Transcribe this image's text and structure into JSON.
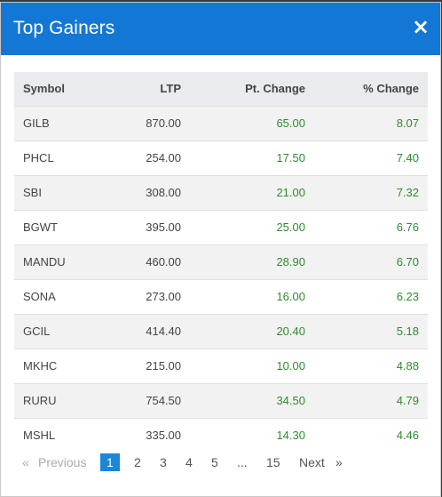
{
  "modal": {
    "title": "Top Gainers",
    "close_label": "×"
  },
  "table": {
    "columns": [
      "Symbol",
      "LTP",
      "Pt. Change",
      "% Change"
    ],
    "rows": [
      {
        "symbol": "GILB",
        "ltp": "870.00",
        "pt_change": "65.00",
        "pct_change": "8.07"
      },
      {
        "symbol": "PHCL",
        "ltp": "254.00",
        "pt_change": "17.50",
        "pct_change": "7.40"
      },
      {
        "symbol": "SBI",
        "ltp": "308.00",
        "pt_change": "21.00",
        "pct_change": "7.32"
      },
      {
        "symbol": "BGWT",
        "ltp": "395.00",
        "pt_change": "25.00",
        "pct_change": "6.76"
      },
      {
        "symbol": "MANDU",
        "ltp": "460.00",
        "pt_change": "28.90",
        "pct_change": "6.70"
      },
      {
        "symbol": "SONA",
        "ltp": "273.00",
        "pt_change": "16.00",
        "pct_change": "6.23"
      },
      {
        "symbol": "GCIL",
        "ltp": "414.40",
        "pt_change": "20.40",
        "pct_change": "5.18"
      },
      {
        "symbol": "MKHC",
        "ltp": "215.00",
        "pt_change": "10.00",
        "pct_change": "4.88"
      },
      {
        "symbol": "RURU",
        "ltp": "754.50",
        "pt_change": "34.50",
        "pct_change": "4.79"
      },
      {
        "symbol": "MSHL",
        "ltp": "335.00",
        "pt_change": "14.30",
        "pct_change": "4.46"
      }
    ]
  },
  "pagination": {
    "prev_arrow": "«",
    "prev_label": "Previous",
    "pages": [
      "1",
      "2",
      "3",
      "4",
      "5"
    ],
    "ellipsis": "...",
    "last_page": "15",
    "next_label": "Next",
    "next_arrow": "»",
    "current_page": "1"
  },
  "colors": {
    "header": "#1378d5",
    "positive": "#2e8b2e",
    "active_page": "#1a87d8"
  }
}
